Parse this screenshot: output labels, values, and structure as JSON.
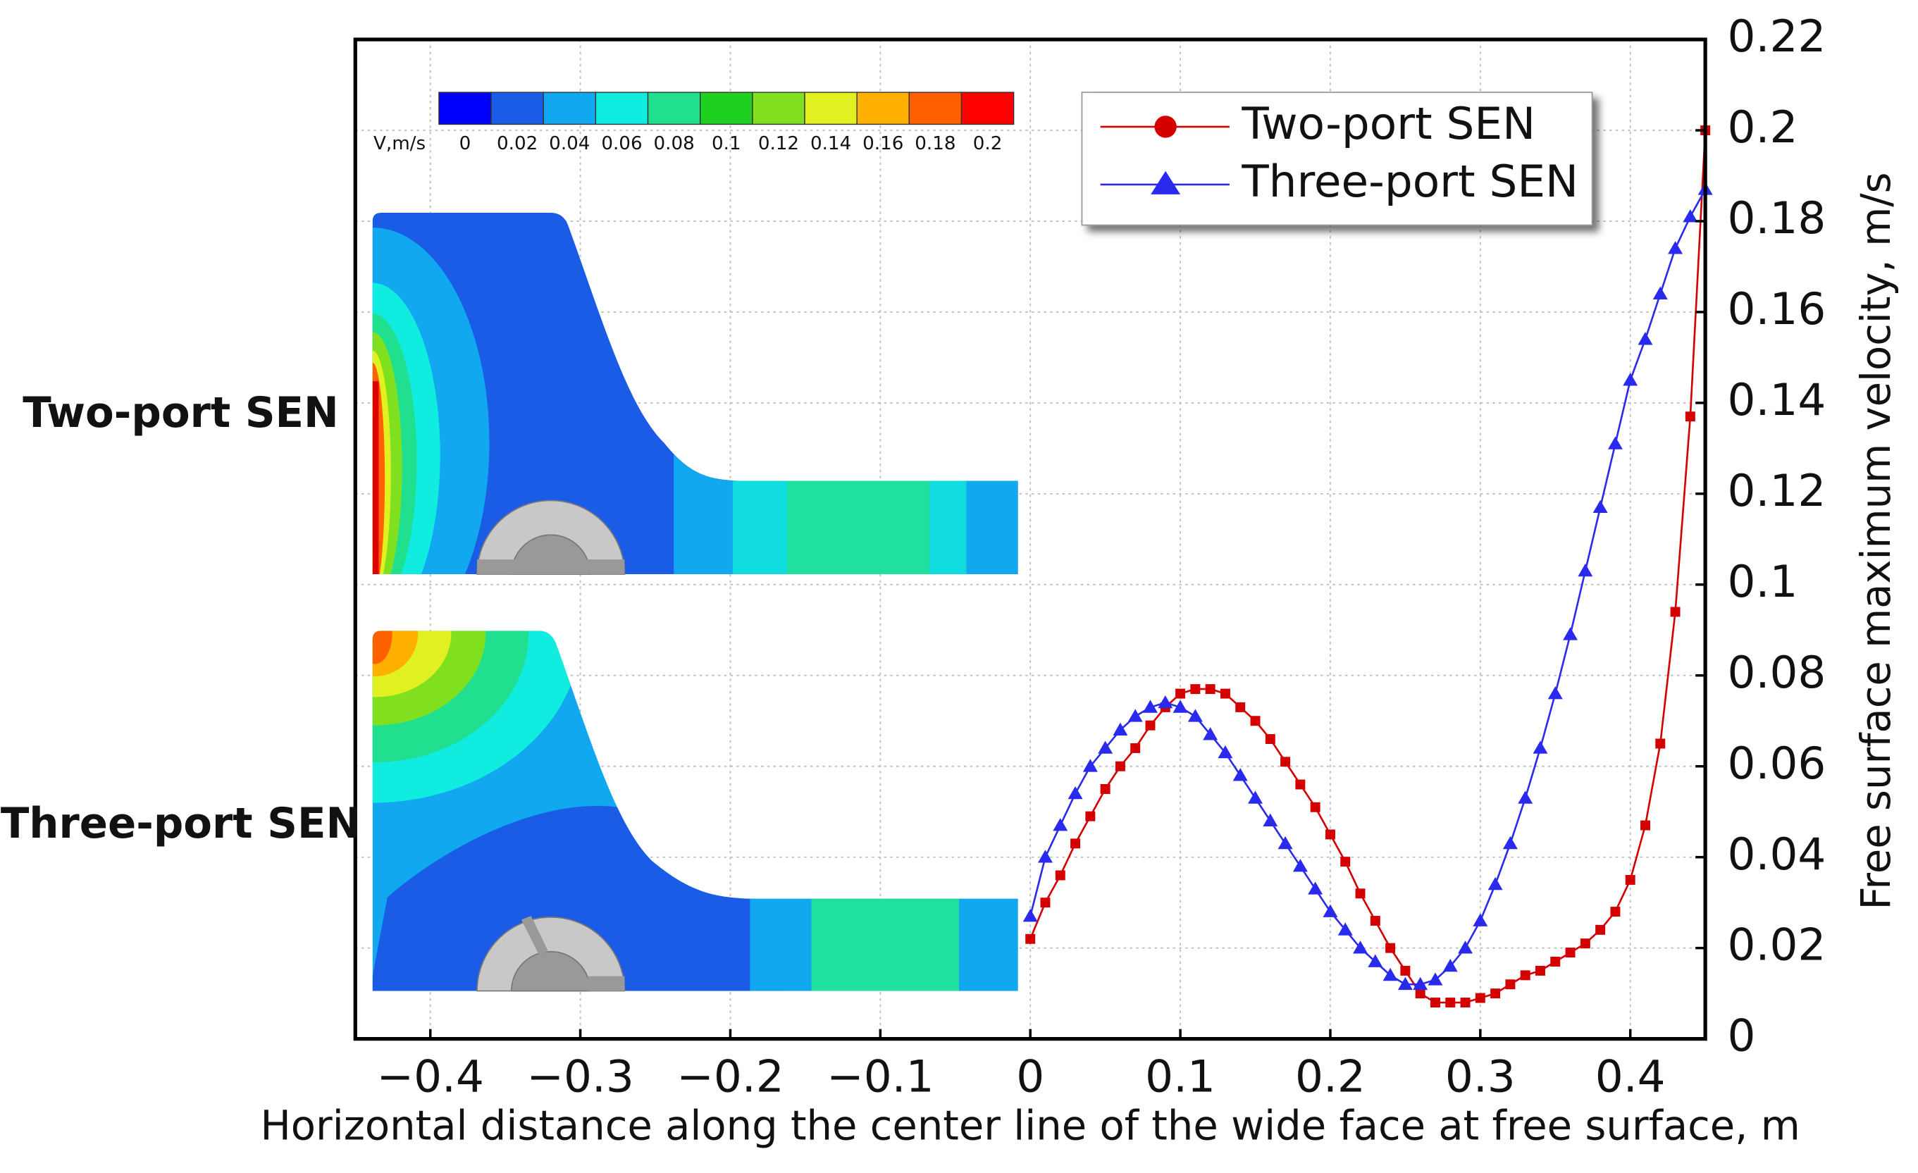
{
  "chart_data": {
    "type": "line",
    "xlabel": "Horizontal distance along the center line of the wide face at free surface, m",
    "ylabel": "Free surface maximum velocity, m/s",
    "xlim": [
      -0.45,
      0.45
    ],
    "xticks": [
      {
        "value": -0.4,
        "label": "−0.4"
      },
      {
        "value": -0.3,
        "label": "−0.3"
      },
      {
        "value": -0.2,
        "label": "−0.2"
      },
      {
        "value": -0.1,
        "label": "−0.1"
      },
      0,
      0.1,
      0.2,
      0.3,
      0.4
    ],
    "ylim": [
      0,
      0.22
    ],
    "yticks": [
      0,
      0.02,
      0.04,
      0.06,
      0.08,
      0.1,
      0.12,
      0.14,
      0.16,
      0.18,
      0.2,
      0.22
    ],
    "grid": true,
    "legend": "upper right",
    "x": [
      0,
      0.01,
      0.02,
      0.03,
      0.04,
      0.05,
      0.06,
      0.07,
      0.08,
      0.09,
      0.1,
      0.11,
      0.12,
      0.13,
      0.14,
      0.15,
      0.16,
      0.17,
      0.18,
      0.19,
      0.2,
      0.21,
      0.22,
      0.23,
      0.24,
      0.25,
      0.26,
      0.27,
      0.28,
      0.29,
      0.3,
      0.31,
      0.32,
      0.33,
      0.34,
      0.35,
      0.36,
      0.37,
      0.38,
      0.39,
      0.4,
      0.41,
      0.42,
      0.43,
      0.44,
      0.45
    ],
    "series": [
      {
        "name": "Two-port SEN",
        "color": "#d40000",
        "marker": "square",
        "values": [
          0.022,
          0.03,
          0.036,
          0.043,
          0.049,
          0.055,
          0.06,
          0.064,
          0.069,
          0.073,
          0.076,
          0.077,
          0.077,
          0.076,
          0.073,
          0.07,
          0.066,
          0.061,
          0.056,
          0.051,
          0.045,
          0.039,
          0.032,
          0.026,
          0.02,
          0.015,
          0.01,
          0.008,
          0.008,
          0.008,
          0.009,
          0.01,
          0.012,
          0.014,
          0.015,
          0.017,
          0.019,
          0.021,
          0.024,
          0.028,
          0.035,
          0.047,
          0.065,
          0.094,
          0.137,
          0.2
        ]
      },
      {
        "name": "Three-port SEN",
        "color": "#2a2aee",
        "marker": "triangle",
        "values": [
          0.027,
          0.04,
          0.047,
          0.054,
          0.06,
          0.064,
          0.068,
          0.071,
          0.073,
          0.074,
          0.073,
          0.071,
          0.067,
          0.063,
          0.058,
          0.053,
          0.048,
          0.043,
          0.038,
          0.033,
          0.028,
          0.024,
          0.02,
          0.017,
          0.014,
          0.012,
          0.012,
          0.013,
          0.016,
          0.02,
          0.026,
          0.034,
          0.043,
          0.053,
          0.064,
          0.076,
          0.089,
          0.103,
          0.117,
          0.131,
          0.145,
          0.154,
          0.164,
          0.174,
          0.181,
          0.187
        ]
      }
    ],
    "colorbar": {
      "label": "V,m/s",
      "ticks": [
        0,
        0.02,
        0.04,
        0.06,
        0.08,
        0.1,
        0.12,
        0.14,
        0.16,
        0.18,
        0.2
      ],
      "colors": [
        "#0000ff",
        "#1a5ce6",
        "#12a8f0",
        "#10ece0",
        "#20e090",
        "#20d020",
        "#80e020",
        "#e0f020",
        "#ffb000",
        "#ff6000",
        "#ff0000"
      ]
    },
    "panels": [
      "Two-port SEN",
      "Three-port SEN"
    ]
  }
}
